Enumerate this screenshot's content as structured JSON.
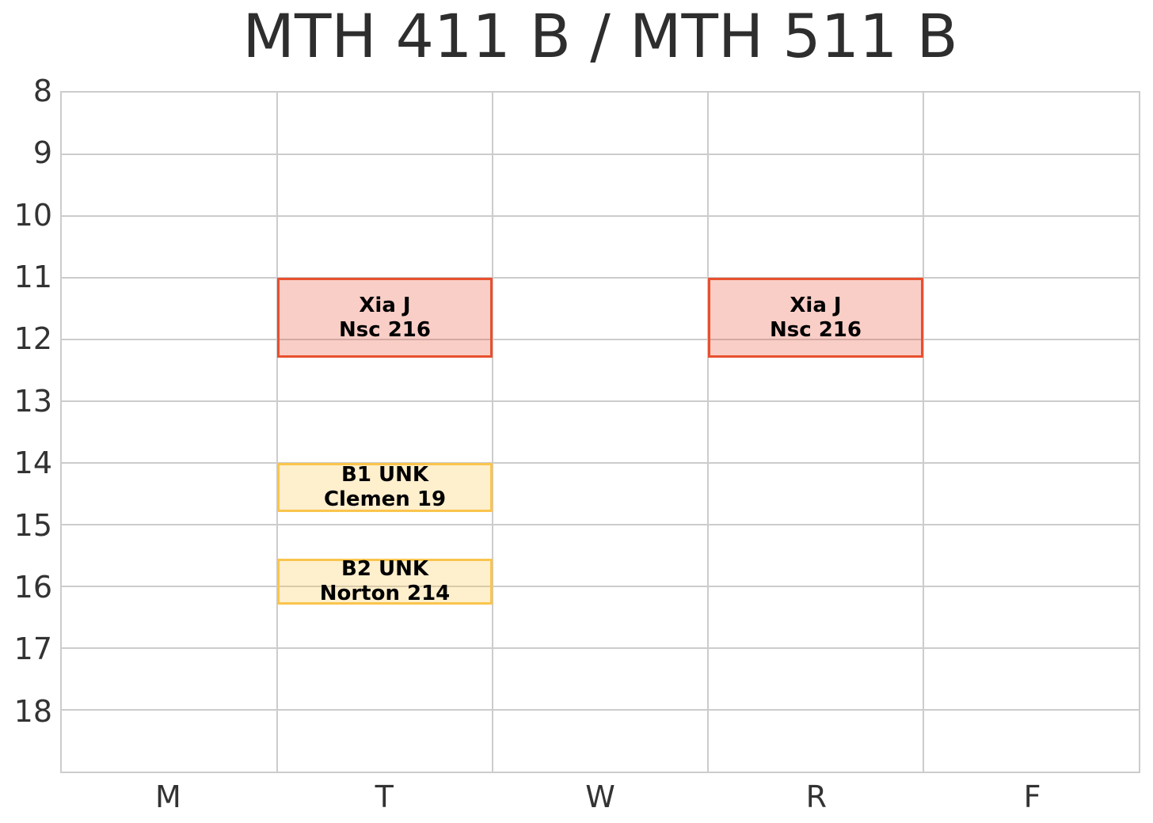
{
  "title": "MTH 411 B / MTH 511 B",
  "axes": {
    "y_ticks": [
      "8",
      "9",
      "10",
      "11",
      "12",
      "13",
      "14",
      "15",
      "16",
      "17",
      "18"
    ],
    "y_range": [
      8,
      19
    ],
    "x_ticks": [
      "M",
      "T",
      "W",
      "R",
      "F"
    ]
  },
  "colors": {
    "background": "#ffffff",
    "grid": "#cccccc",
    "title_text": "#2e2e2e",
    "tick_text": "#333333",
    "event_text": "#000000",
    "red_event_border": "#e8502f",
    "red_event_fill": "rgba(232,80,53,0.28)",
    "gold_event_border": "#fac54d",
    "gold_event_fill": "rgba(250,197,77,0.28)"
  },
  "chart_data": {
    "type": "bar",
    "subtype": "weekly-schedule-timetable",
    "title": "MTH 411 B / MTH 511 B",
    "x_categories": [
      "M",
      "T",
      "W",
      "R",
      "F"
    ],
    "y_axis": {
      "unit": "hour of day",
      "range": [
        8,
        19
      ],
      "ticks": [
        8,
        9,
        10,
        11,
        12,
        13,
        14,
        15,
        16,
        17,
        18
      ],
      "direction": "top-to-bottom"
    },
    "grid": true,
    "legend": false,
    "styles": {
      "red": {
        "border": "#e8502f",
        "fill": "rgba(232,80,53,0.28)"
      },
      "gold": {
        "border": "#fac54d",
        "fill": "rgba(250,197,77,0.28)"
      }
    },
    "events": [
      {
        "day": "T",
        "day_index": 1,
        "start_hour": 11.0,
        "end_hour": 12.3,
        "lines": [
          "Xia J",
          "Nsc 216"
        ],
        "style": "red"
      },
      {
        "day": "R",
        "day_index": 3,
        "start_hour": 11.0,
        "end_hour": 12.3,
        "lines": [
          "Xia J",
          "Nsc 216"
        ],
        "style": "red"
      },
      {
        "day": "T",
        "day_index": 1,
        "start_hour": 14.0,
        "end_hour": 14.8,
        "lines": [
          "B1 UNK",
          "Clemen 19"
        ],
        "style": "gold"
      },
      {
        "day": "T",
        "day_index": 1,
        "start_hour": 15.55,
        "end_hour": 16.3,
        "lines": [
          "B2 UNK",
          "Norton 214"
        ],
        "style": "gold"
      }
    ]
  }
}
